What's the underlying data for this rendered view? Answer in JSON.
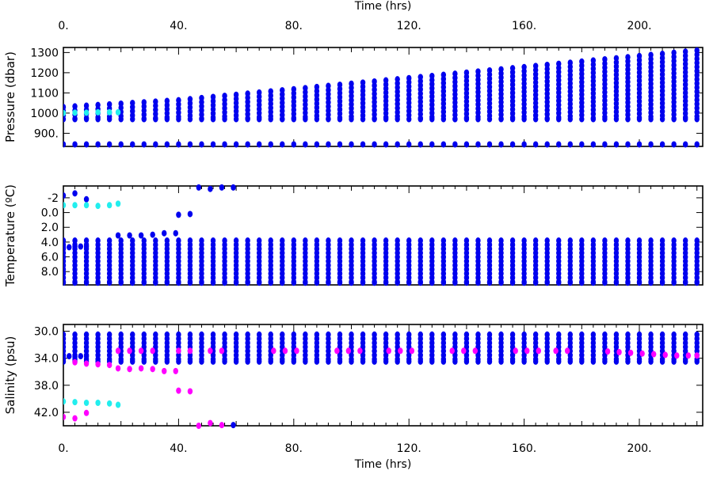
{
  "time_axis": {
    "label": "Time (hrs)",
    "range": [
      0,
      222
    ],
    "ticks": [
      0,
      40,
      80,
      120,
      160,
      200
    ],
    "tick_labels": [
      "0.",
      "40.",
      "80.",
      "120.",
      "160.",
      "200."
    ]
  },
  "colors": {
    "primary": "#0000ee",
    "cyan": "#22eeee",
    "magenta": "#ff00ff"
  },
  "chart_data": [
    {
      "type": "scatter",
      "ylabel": "Pressure (dbar)",
      "ylim": [
        1325,
        835
      ],
      "y_inverted": true,
      "yticks": [
        900,
        1000,
        1100,
        1200,
        1300
      ],
      "ytick_labels": [
        "900.",
        "1000",
        "1100",
        "1200",
        "1300"
      ],
      "series": [
        {
          "color": "primary",
          "profiles": {
            "t_start": 0,
            "t_end": 220,
            "t_step": 4,
            "surface_value": 845,
            "top": 970,
            "bottom_start": 1030,
            "bottom_end": 1310,
            "grow_after": 40
          }
        },
        {
          "color": "cyan",
          "points": [
            [
              0,
              1000
            ],
            [
              4,
              1002
            ],
            [
              8,
              1002
            ],
            [
              12,
              1004
            ],
            [
              16,
              1004
            ],
            [
              19,
              1004
            ]
          ]
        }
      ]
    },
    {
      "type": "scatter",
      "ylabel": "Temperature (ºC)",
      "ylim": [
        -3.6,
        9.8
      ],
      "yticks": [
        -2,
        0,
        2,
        4,
        6,
        8
      ],
      "ytick_labels": [
        "-2",
        "0.0",
        "2.0",
        "4.0",
        "6.0",
        "8.0"
      ],
      "series": [
        {
          "color": "primary",
          "profiles": {
            "t_start": 0,
            "t_end": 220,
            "t_step": 4,
            "top": 9.5,
            "bottom": 3.8
          }
        },
        {
          "color": "primary",
          "points": [
            [
              0,
              4.7
            ],
            [
              2,
              4.7
            ],
            [
              4,
              4.6
            ],
            [
              6,
              4.6
            ],
            [
              8,
              4.6
            ],
            [
              0,
              -2.3
            ],
            [
              4,
              -2.6
            ],
            [
              8,
              -1.8
            ],
            [
              19,
              3.1
            ],
            [
              23,
              3.1
            ],
            [
              27,
              3.1
            ],
            [
              31,
              3.0
            ],
            [
              35,
              2.8
            ],
            [
              39,
              2.8
            ],
            [
              40,
              0.3
            ],
            [
              44,
              0.2
            ],
            [
              47,
              -3.4
            ],
            [
              51,
              -3.2
            ],
            [
              55,
              -3.4
            ],
            [
              59,
              -3.4
            ]
          ]
        },
        {
          "color": "cyan",
          "points": [
            [
              0,
              -1.0
            ],
            [
              4,
              -1.0
            ],
            [
              8,
              -1.0
            ],
            [
              12,
              -0.9
            ],
            [
              16,
              -1.0
            ],
            [
              19,
              -1.2
            ]
          ]
        }
      ]
    },
    {
      "type": "scatter",
      "ylabel": "Salinity (psu)",
      "ylim": [
        29.0,
        44.0
      ],
      "yticks": [
        30,
        34,
        38,
        42
      ],
      "ytick_labels": [
        "30.0",
        "34.0",
        "38.0",
        "42.0"
      ],
      "series": [
        {
          "color": "primary",
          "profiles": {
            "t_start": 0,
            "t_end": 220,
            "t_step": 4,
            "top": 34.5,
            "bottom": 30.5
          }
        },
        {
          "color": "primary",
          "points": [
            [
              0,
              33.7
            ],
            [
              2,
              33.7
            ],
            [
              4,
              33.8
            ],
            [
              6,
              33.7
            ],
            [
              8,
              33.7
            ],
            [
              59,
              43.9
            ]
          ]
        },
        {
          "color": "cyan",
          "points": [
            [
              0,
              40.4
            ],
            [
              4,
              40.5
            ],
            [
              8,
              40.6
            ],
            [
              12,
              40.6
            ],
            [
              16,
              40.7
            ],
            [
              19,
              40.9
            ]
          ]
        },
        {
          "color": "magenta",
          "points": [
            [
              0,
              42.7
            ],
            [
              4,
              42.9
            ],
            [
              8,
              42.1
            ],
            [
              4,
              34.6
            ],
            [
              8,
              34.8
            ],
            [
              12,
              34.9
            ],
            [
              16,
              35.0
            ],
            [
              19,
              35.5
            ],
            [
              23,
              35.6
            ],
            [
              27,
              35.5
            ],
            [
              31,
              35.6
            ],
            [
              35,
              35.9
            ],
            [
              39,
              35.9
            ],
            [
              40,
              38.8
            ],
            [
              44,
              38.9
            ],
            [
              47,
              44.0
            ],
            [
              51,
              43.6
            ],
            [
              55,
              43.9
            ],
            [
              19,
              32.9
            ],
            [
              23,
              32.9
            ],
            [
              27,
              32.9
            ],
            [
              31,
              32.9
            ],
            [
              40,
              32.9
            ],
            [
              44,
              32.9
            ],
            [
              51,
              32.9
            ],
            [
              55,
              32.9
            ],
            [
              73,
              32.9
            ],
            [
              77,
              32.9
            ],
            [
              81,
              32.9
            ],
            [
              95,
              32.9
            ],
            [
              99,
              32.9
            ],
            [
              103,
              32.9
            ],
            [
              113,
              32.9
            ],
            [
              117,
              32.9
            ],
            [
              121,
              32.9
            ],
            [
              135,
              32.9
            ],
            [
              139,
              32.9
            ],
            [
              143,
              32.9
            ],
            [
              157,
              32.9
            ],
            [
              161,
              32.9
            ],
            [
              165,
              32.9
            ],
            [
              171,
              32.9
            ],
            [
              175,
              32.9
            ],
            [
              189,
              33.0
            ],
            [
              193,
              33.1
            ],
            [
              197,
              33.2
            ],
            [
              201,
              33.3
            ],
            [
              205,
              33.4
            ],
            [
              209,
              33.5
            ],
            [
              213,
              33.6
            ],
            [
              217,
              33.6
            ],
            [
              220,
              33.6
            ]
          ]
        }
      ]
    }
  ]
}
